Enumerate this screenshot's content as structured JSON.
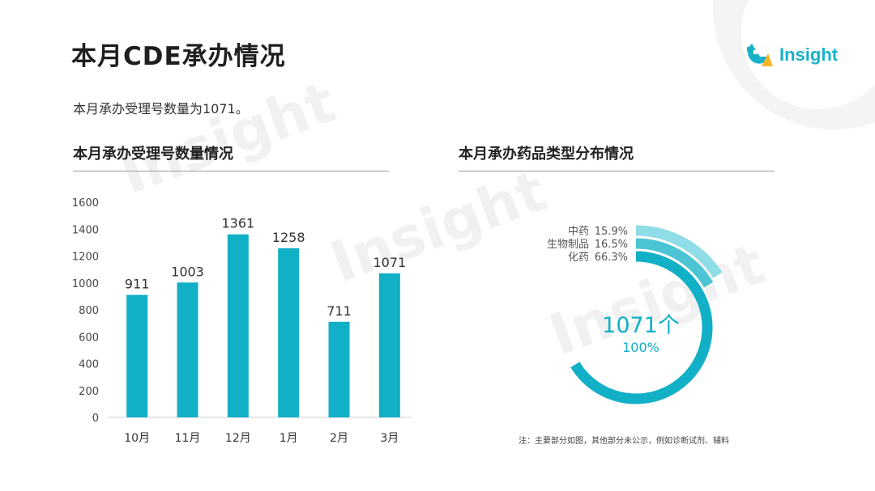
{
  "page": {
    "title": "本月CDE承办情况",
    "intro": "本月承办受理号数量为1071。",
    "brand": "Insight",
    "watermark": "Insight",
    "note": "注：主要部分如图，其他部分未公示，例如诊断试剂、辅料",
    "accent_color": "#12b0c7"
  },
  "chart_data": [
    {
      "type": "bar",
      "title": "本月承办受理号数量情况",
      "categories": [
        "10月",
        "11月",
        "12月",
        "1月",
        "2月",
        "3月"
      ],
      "values": [
        911,
        1003,
        1361,
        1258,
        711,
        1071
      ],
      "ylim": [
        0,
        1600
      ],
      "yticks": [
        0,
        200,
        400,
        600,
        800,
        1000,
        1200,
        1400,
        1600
      ],
      "color": "#12b0c7",
      "grid": false
    },
    {
      "type": "pie",
      "title": "本月承办药品类型分布情况",
      "center_value": "1071个",
      "center_percent": "100%",
      "slices": [
        {
          "label": "中药",
          "percent": "15.9%",
          "value": 15.9,
          "color": "#8fdde6"
        },
        {
          "label": "生物制品",
          "percent": "16.5%",
          "value": 16.5,
          "color": "#4cc4d4"
        },
        {
          "label": "化药",
          "percent": "66.3%",
          "value": 66.3,
          "color": "#12b0c7"
        }
      ]
    }
  ]
}
